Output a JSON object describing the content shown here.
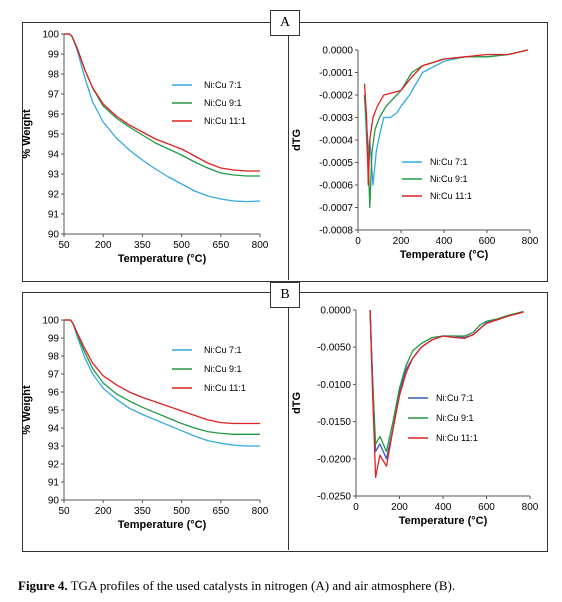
{
  "panels": [
    {
      "label": "A"
    },
    {
      "label": "B"
    }
  ],
  "caption": {
    "prefix": "Figure 4.",
    "text": " TGA profiles of the used catalysts in nitrogen (A) and air atmosphere (B)."
  },
  "chart_data": [
    {
      "type": "line",
      "panel": "A",
      "ylabel": "% Weight",
      "xlabel": "Temperature (°C)",
      "xlim": [
        50,
        800
      ],
      "ylim": [
        90,
        100
      ],
      "xticks": [
        "50",
        "200",
        "350",
        "500",
        "650",
        "800"
      ],
      "yticks": [
        "90",
        "91",
        "92",
        "93",
        "94",
        "95",
        "96",
        "97",
        "98",
        "99",
        "100"
      ],
      "legend_position": "right",
      "series": [
        {
          "name": "Ni:Cu 7:1",
          "color": "#33aadd",
          "points": [
            [
              50,
              100
            ],
            [
              70,
              100
            ],
            [
              80,
              99.9
            ],
            [
              100,
              99.2
            ],
            [
              130,
              97.8
            ],
            [
              160,
              96.6
            ],
            [
              200,
              95.6
            ],
            [
              250,
              94.8
            ],
            [
              300,
              94.2
            ],
            [
              350,
              93.7
            ],
            [
              400,
              93.25
            ],
            [
              450,
              92.85
            ],
            [
              500,
              92.5
            ],
            [
              550,
              92.15
            ],
            [
              600,
              91.9
            ],
            [
              650,
              91.75
            ],
            [
              700,
              91.65
            ],
            [
              750,
              91.62
            ],
            [
              800,
              91.65
            ]
          ]
        },
        {
          "name": "Ni:Cu 9:1",
          "color": "#229944",
          "points": [
            [
              50,
              100
            ],
            [
              70,
              100
            ],
            [
              80,
              99.9
            ],
            [
              100,
              99.3
            ],
            [
              130,
              98.2
            ],
            [
              160,
              97.3
            ],
            [
              200,
              96.4
            ],
            [
              250,
              95.8
            ],
            [
              300,
              95.35
            ],
            [
              350,
              94.95
            ],
            [
              400,
              94.55
            ],
            [
              450,
              94.25
            ],
            [
              500,
              93.95
            ],
            [
              550,
              93.6
            ],
            [
              600,
              93.3
            ],
            [
              650,
              93.05
            ],
            [
              700,
              92.95
            ],
            [
              750,
              92.9
            ],
            [
              800,
              92.9
            ]
          ]
        },
        {
          "name": "Ni:Cu 11:1",
          "color": "#dd2222",
          "points": [
            [
              50,
              100
            ],
            [
              70,
              100
            ],
            [
              80,
              99.9
            ],
            [
              100,
              99.3
            ],
            [
              130,
              98.2
            ],
            [
              160,
              97.3
            ],
            [
              200,
              96.5
            ],
            [
              250,
              95.9
            ],
            [
              300,
              95.45
            ],
            [
              350,
              95.1
            ],
            [
              400,
              94.75
            ],
            [
              450,
              94.5
            ],
            [
              500,
              94.25
            ],
            [
              550,
              93.9
            ],
            [
              600,
              93.55
            ],
            [
              650,
              93.3
            ],
            [
              700,
              93.2
            ],
            [
              750,
              93.15
            ],
            [
              800,
              93.15
            ]
          ]
        }
      ]
    },
    {
      "type": "line",
      "panel": "A",
      "ylabel": "dTG",
      "xlabel": "Temperature (°C)",
      "xlim": [
        0,
        800
      ],
      "ylim": [
        -0.0008,
        0
      ],
      "xticks": [
        "0",
        "200",
        "400",
        "600",
        "800"
      ],
      "yticks": [
        "-0.0008",
        "-0.0007",
        "-0.0006",
        "-0.0005",
        "-0.0004",
        "-0.0003",
        "-0.0002",
        "-0.0001",
        "0.0000"
      ],
      "legend_position": "bottom-right",
      "series": [
        {
          "name": "Ni:Cu 7:1",
          "color": "#33aadd",
          "points": [
            [
              30,
              -0.0002
            ],
            [
              45,
              -0.0005
            ],
            [
              55,
              -0.0004
            ],
            [
              70,
              -0.0006
            ],
            [
              85,
              -0.00045
            ],
            [
              100,
              -0.00038
            ],
            [
              120,
              -0.0003
            ],
            [
              150,
              -0.0003
            ],
            [
              180,
              -0.00028
            ],
            [
              200,
              -0.00025
            ],
            [
              240,
              -0.0002
            ],
            [
              300,
              -0.0001
            ],
            [
              400,
              -5e-05
            ],
            [
              500,
              -3e-05
            ],
            [
              600,
              -3e-05
            ],
            [
              700,
              -2e-05
            ],
            [
              790,
              0
            ]
          ]
        },
        {
          "name": "Ni:Cu 9:1",
          "color": "#229944",
          "points": [
            [
              30,
              -0.0002
            ],
            [
              45,
              -0.0004
            ],
            [
              55,
              -0.0007
            ],
            [
              65,
              -0.00045
            ],
            [
              80,
              -0.00035
            ],
            [
              100,
              -0.0003
            ],
            [
              130,
              -0.00025
            ],
            [
              160,
              -0.00022
            ],
            [
              200,
              -0.00018
            ],
            [
              250,
              -0.0001
            ],
            [
              300,
              -7e-05
            ],
            [
              400,
              -4e-05
            ],
            [
              500,
              -3e-05
            ],
            [
              600,
              -3e-05
            ],
            [
              700,
              -2e-05
            ],
            [
              790,
              0
            ]
          ]
        },
        {
          "name": "Ni:Cu 11:1",
          "color": "#dd2222",
          "points": [
            [
              30,
              -0.00015
            ],
            [
              40,
              -0.0003
            ],
            [
              48,
              -0.0006
            ],
            [
              55,
              -0.0004
            ],
            [
              70,
              -0.0003
            ],
            [
              90,
              -0.00025
            ],
            [
              120,
              -0.0002
            ],
            [
              160,
              -0.00019
            ],
            [
              200,
              -0.00018
            ],
            [
              250,
              -0.00012
            ],
            [
              300,
              -7e-05
            ],
            [
              400,
              -4e-05
            ],
            [
              500,
              -3e-05
            ],
            [
              600,
              -2e-05
            ],
            [
              700,
              -2e-05
            ],
            [
              790,
              0
            ]
          ]
        }
      ]
    },
    {
      "type": "line",
      "panel": "B",
      "ylabel": "% Weight",
      "xlabel": "Temperature (°C)",
      "xlim": [
        50,
        800
      ],
      "ylim": [
        90,
        100
      ],
      "xticks": [
        "50",
        "200",
        "350",
        "500",
        "650",
        "800"
      ],
      "yticks": [
        "90",
        "91",
        "92",
        "93",
        "94",
        "95",
        "96",
        "97",
        "98",
        "99",
        "100"
      ],
      "legend_position": "right",
      "series": [
        {
          "name": "Ni:Cu 7:1",
          "color": "#33aadd",
          "points": [
            [
              50,
              100
            ],
            [
              75,
              100
            ],
            [
              85,
              99.8
            ],
            [
              100,
              99.1
            ],
            [
              130,
              97.9
            ],
            [
              160,
              97.0
            ],
            [
              200,
              96.2
            ],
            [
              250,
              95.6
            ],
            [
              300,
              95.1
            ],
            [
              350,
              94.75
            ],
            [
              400,
              94.45
            ],
            [
              450,
              94.15
            ],
            [
              500,
              93.85
            ],
            [
              550,
              93.55
            ],
            [
              600,
              93.3
            ],
            [
              650,
              93.15
            ],
            [
              700,
              93.05
            ],
            [
              750,
              93.0
            ],
            [
              800,
              93.0
            ]
          ]
        },
        {
          "name": "Ni:Cu 9:1",
          "color": "#229944",
          "points": [
            [
              50,
              100
            ],
            [
              75,
              100
            ],
            [
              85,
              99.8
            ],
            [
              100,
              99.2
            ],
            [
              130,
              98.2
            ],
            [
              160,
              97.3
            ],
            [
              200,
              96.5
            ],
            [
              250,
              95.9
            ],
            [
              300,
              95.5
            ],
            [
              350,
              95.15
            ],
            [
              400,
              94.85
            ],
            [
              450,
              94.55
            ],
            [
              500,
              94.25
            ],
            [
              550,
              94.0
            ],
            [
              600,
              93.8
            ],
            [
              650,
              93.7
            ],
            [
              700,
              93.65
            ],
            [
              750,
              93.65
            ],
            [
              800,
              93.65
            ]
          ]
        },
        {
          "name": "Ni:Cu 11:1",
          "color": "#dd2222",
          "points": [
            [
              50,
              100
            ],
            [
              75,
              100
            ],
            [
              85,
              99.8
            ],
            [
              100,
              99.3
            ],
            [
              130,
              98.4
            ],
            [
              160,
              97.6
            ],
            [
              200,
              96.9
            ],
            [
              250,
              96.4
            ],
            [
              300,
              96.0
            ],
            [
              350,
              95.7
            ],
            [
              400,
              95.45
            ],
            [
              450,
              95.2
            ],
            [
              500,
              94.95
            ],
            [
              550,
              94.7
            ],
            [
              600,
              94.45
            ],
            [
              650,
              94.3
            ],
            [
              700,
              94.25
            ],
            [
              750,
              94.25
            ],
            [
              800,
              94.25
            ]
          ]
        }
      ]
    },
    {
      "type": "line",
      "panel": "B",
      "ylabel": "dTG",
      "xlabel": "Temperature (°C)",
      "xlim": [
        0,
        800
      ],
      "ylim": [
        -0.025,
        0
      ],
      "xticks": [
        "0",
        "200",
        "400",
        "600",
        "800"
      ],
      "yticks": [
        "-0.0250",
        "-0.0200",
        "-0.0150",
        "-0.0100",
        "-0.0050",
        "0.0000"
      ],
      "legend_position": "bottom-right",
      "series": [
        {
          "name": "Ni:Cu 7:1",
          "color": "#3b5bbf",
          "points": [
            [
              65,
              0
            ],
            [
              75,
              -0.008
            ],
            [
              90,
              -0.019
            ],
            [
              110,
              -0.018
            ],
            [
              140,
              -0.02
            ],
            [
              170,
              -0.016
            ],
            [
              200,
              -0.011
            ],
            [
              230,
              -0.008
            ],
            [
              260,
              -0.0065
            ],
            [
              300,
              -0.005
            ],
            [
              350,
              -0.004
            ],
            [
              400,
              -0.0035
            ],
            [
              450,
              -0.0035
            ],
            [
              500,
              -0.0037
            ],
            [
              540,
              -0.0033
            ],
            [
              570,
              -0.0025
            ],
            [
              600,
              -0.0017
            ],
            [
              650,
              -0.0013
            ],
            [
              700,
              -0.0008
            ],
            [
              770,
              -0.0002
            ]
          ]
        },
        {
          "name": "Ni:Cu 9:1",
          "color": "#229944",
          "points": [
            [
              65,
              0
            ],
            [
              75,
              -0.009
            ],
            [
              90,
              -0.018
            ],
            [
              110,
              -0.017
            ],
            [
              140,
              -0.019
            ],
            [
              170,
              -0.015
            ],
            [
              200,
              -0.0105
            ],
            [
              230,
              -0.0075
            ],
            [
              260,
              -0.0055
            ],
            [
              300,
              -0.0045
            ],
            [
              350,
              -0.0037
            ],
            [
              400,
              -0.0035
            ],
            [
              450,
              -0.0035
            ],
            [
              500,
              -0.0035
            ],
            [
              540,
              -0.003
            ],
            [
              570,
              -0.002
            ],
            [
              600,
              -0.0015
            ],
            [
              650,
              -0.0012
            ],
            [
              700,
              -0.0007
            ],
            [
              770,
              -0.0002
            ]
          ]
        },
        {
          "name": "Ni:Cu 11:1",
          "color": "#dd2222",
          "points": [
            [
              65,
              0
            ],
            [
              75,
              -0.01
            ],
            [
              90,
              -0.0225
            ],
            [
              110,
              -0.0195
            ],
            [
              140,
              -0.021
            ],
            [
              170,
              -0.016
            ],
            [
              200,
              -0.0115
            ],
            [
              230,
              -0.0085
            ],
            [
              260,
              -0.0065
            ],
            [
              300,
              -0.005
            ],
            [
              350,
              -0.004
            ],
            [
              400,
              -0.0035
            ],
            [
              450,
              -0.0037
            ],
            [
              500,
              -0.0038
            ],
            [
              540,
              -0.0033
            ],
            [
              570,
              -0.0025
            ],
            [
              600,
              -0.0018
            ],
            [
              650,
              -0.0013
            ],
            [
              700,
              -0.0008
            ],
            [
              770,
              -0.0003
            ]
          ]
        }
      ]
    }
  ]
}
